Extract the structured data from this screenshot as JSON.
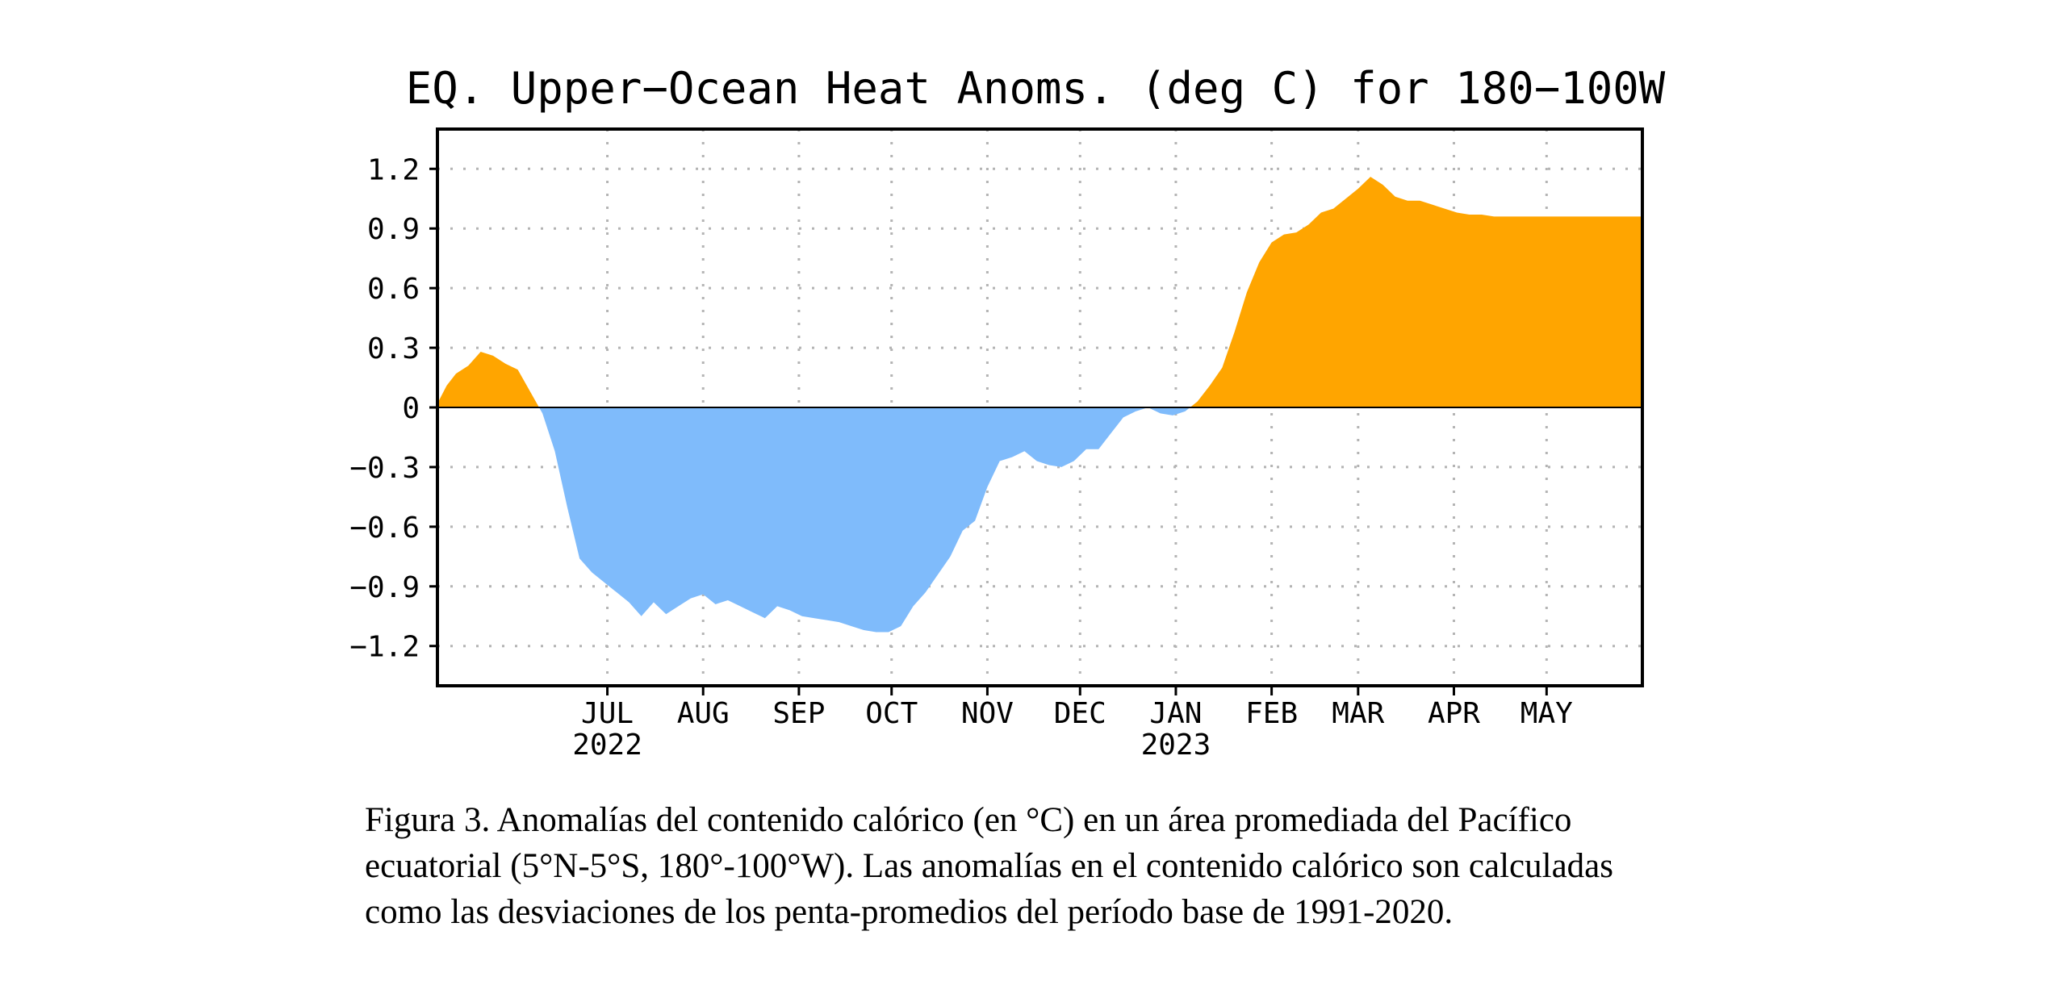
{
  "chart_data": {
    "type": "area",
    "title": "EQ. Upper−Ocean Heat Anoms. (deg C) for 180−100W",
    "xlabel": "",
    "ylabel": "",
    "ylim": [
      -1.4,
      1.4
    ],
    "xlim": [
      "2022-05-07",
      "2023-06-01"
    ],
    "yticks": [
      1.2,
      0.9,
      0.6,
      0.3,
      0,
      -0.3,
      -0.6,
      -0.9,
      -1.2
    ],
    "ytick_labels": [
      "1.2",
      "0.9",
      "0.6",
      "0.3",
      "0",
      "−0.3",
      "−0.6",
      "−0.9",
      "−1.2"
    ],
    "xticks": [
      {
        "date": "2022-07-01",
        "label": "JUL",
        "year": "2022"
      },
      {
        "date": "2022-08-01",
        "label": "AUG",
        "year": ""
      },
      {
        "date": "2022-09-01",
        "label": "SEP",
        "year": ""
      },
      {
        "date": "2022-10-01",
        "label": "OCT",
        "year": ""
      },
      {
        "date": "2022-11-01",
        "label": "NOV",
        "year": ""
      },
      {
        "date": "2022-12-01",
        "label": "DEC",
        "year": ""
      },
      {
        "date": "2023-01-01",
        "label": "JAN",
        "year": "2023"
      },
      {
        "date": "2023-02-01",
        "label": "FEB",
        "year": ""
      },
      {
        "date": "2023-03-01",
        "label": "MAR",
        "year": ""
      },
      {
        "date": "2023-04-01",
        "label": "APR",
        "year": ""
      },
      {
        "date": "2023-05-01",
        "label": "MAY",
        "year": ""
      }
    ],
    "grid": true,
    "positive_color": "#ffa500",
    "negative_color": "#7fbbfb",
    "series": [
      {
        "x": [
          "2022-05-07",
          "2022-05-10",
          "2022-05-13",
          "2022-05-17",
          "2022-05-21",
          "2022-05-25",
          "2022-05-29",
          "2022-06-02",
          "2022-06-06",
          "2022-06-10",
          "2022-06-14",
          "2022-06-18",
          "2022-06-22",
          "2022-06-26",
          "2022-06-30",
          "2022-07-04",
          "2022-07-08",
          "2022-07-12",
          "2022-07-16",
          "2022-07-20",
          "2022-07-24",
          "2022-07-28",
          "2022-08-01",
          "2022-08-05",
          "2022-08-09",
          "2022-08-13",
          "2022-08-17",
          "2022-08-21",
          "2022-08-25",
          "2022-08-29",
          "2022-09-02",
          "2022-09-06",
          "2022-09-10",
          "2022-09-14",
          "2022-09-18",
          "2022-09-22",
          "2022-09-26",
          "2022-09-30",
          "2022-10-04",
          "2022-10-08",
          "2022-10-12",
          "2022-10-16",
          "2022-10-20",
          "2022-10-24",
          "2022-10-28",
          "2022-11-01",
          "2022-11-05",
          "2022-11-09",
          "2022-11-13",
          "2022-11-17",
          "2022-11-21",
          "2022-11-25",
          "2022-11-29",
          "2022-12-03",
          "2022-12-07",
          "2022-12-11",
          "2022-12-15",
          "2022-12-19",
          "2022-12-23",
          "2022-12-27",
          "2022-12-31",
          "2023-01-04",
          "2023-01-08",
          "2023-01-12",
          "2023-01-16",
          "2023-01-20",
          "2023-01-24",
          "2023-01-28",
          "2023-02-01",
          "2023-02-05",
          "2023-02-09",
          "2023-02-13",
          "2023-02-17",
          "2023-02-21",
          "2023-02-25",
          "2023-03-01",
          "2023-03-05",
          "2023-03-09",
          "2023-03-13",
          "2023-03-17",
          "2023-03-21",
          "2023-03-25",
          "2023-03-29",
          "2023-04-02",
          "2023-04-06",
          "2023-04-10",
          "2023-04-14",
          "2023-04-18",
          "2023-04-22",
          "2023-04-26",
          "2023-04-30",
          "2023-05-04",
          "2023-05-08",
          "2023-05-12",
          "2023-05-16",
          "2023-05-20",
          "2023-05-24",
          "2023-05-28",
          "2023-06-01"
        ],
        "values": [
          0.02,
          0.11,
          0.17,
          0.21,
          0.28,
          0.26,
          0.22,
          0.19,
          0.08,
          -0.03,
          -0.22,
          -0.5,
          -0.76,
          -0.83,
          -0.88,
          -0.93,
          -0.98,
          -1.05,
          -0.98,
          -1.04,
          -1.0,
          -0.96,
          -0.94,
          -0.99,
          -0.97,
          -1.0,
          -1.03,
          -1.06,
          -1.0,
          -1.02,
          -1.05,
          -1.06,
          -1.07,
          -1.08,
          -1.1,
          -1.12,
          -1.13,
          -1.13,
          -1.1,
          -1.0,
          -0.93,
          -0.84,
          -0.75,
          -0.62,
          -0.57,
          -0.4,
          -0.27,
          -0.25,
          -0.22,
          -0.27,
          -0.29,
          -0.3,
          -0.27,
          -0.21,
          -0.21,
          -0.13,
          -0.05,
          -0.02,
          0.0,
          -0.03,
          -0.04,
          -0.02,
          0.03,
          0.11,
          0.2,
          0.38,
          0.58,
          0.73,
          0.83,
          0.87,
          0.88,
          0.92,
          0.98,
          1.0,
          1.05,
          1.1,
          1.16,
          1.12,
          1.06,
          1.04,
          1.04,
          1.02,
          1.0,
          0.98,
          0.97,
          0.97,
          0.96,
          0.96,
          0.96,
          0.96,
          0.96,
          0.96,
          0.96,
          0.96,
          0.96,
          0.96,
          0.96,
          0.96,
          0.96
        ]
      }
    ]
  },
  "caption": {
    "line1": "Figura 3. Anomalías del contenido calórico (en °C) en un área promediada del Pacífico",
    "line2": "ecuatorial (5°N-5°S, 180°-100°W). Las anomalías en el contenido calórico son calculadas",
    "line3": "como las desviaciones de los penta-promedios del período base de 1991-2020."
  }
}
